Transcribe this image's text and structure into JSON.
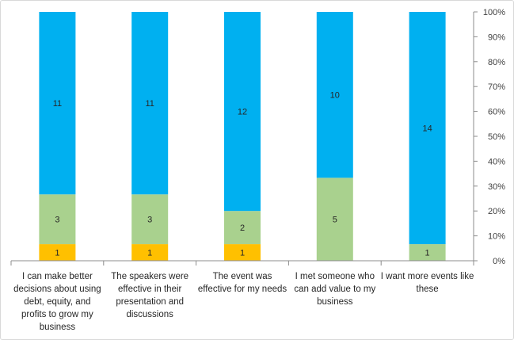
{
  "chart_data": {
    "type": "bar",
    "stacked": "percent",
    "categories": [
      "I can make better decisions about using debt, equity, and profits to grow my business",
      "The speakers were effective in their presentation and discussions",
      "The event was effective for my needs",
      "I met someone who can add value to my business",
      "I want more events like these"
    ],
    "series": [
      {
        "color": "#ffc000",
        "values": [
          1,
          1,
          1,
          0,
          0
        ]
      },
      {
        "color": "#a9d18e",
        "values": [
          3,
          3,
          2,
          5,
          1
        ]
      },
      {
        "color": "#00b0f0",
        "values": [
          11,
          11,
          12,
          10,
          14
        ]
      }
    ],
    "ylim": [
      0,
      100
    ],
    "yticks": [
      "0%",
      "10%",
      "20%",
      "30%",
      "40%",
      "50%",
      "60%",
      "70%",
      "80%",
      "90%",
      "100%"
    ],
    "y_axis_side": "right",
    "grid": false,
    "legend": "none"
  }
}
